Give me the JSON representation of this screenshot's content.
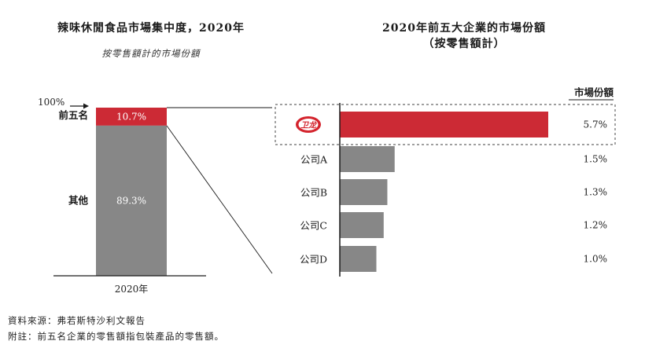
{
  "colors": {
    "red": "#cc2a35",
    "gray": "#878787",
    "dark": "#1a1a1a"
  },
  "left_chart": {
    "title": "辣味休閒食品市場集中度，2020年",
    "subtitle": "按零售額計的市場份額",
    "axis_top_label": "100%",
    "category": "2020年"
  },
  "right_chart": {
    "title_line1": "2020年前五大企業的市場份額",
    "title_line2": "（按零售額計）",
    "column_header": "市場份額",
    "logo_text": "卫龙"
  },
  "chart_data": [
    {
      "type": "bar",
      "stacked": true,
      "categories": [
        "2020年"
      ],
      "series": [
        {
          "name": "前五名",
          "values": [
            10.7
          ],
          "label": "10.7%"
        },
        {
          "name": "其他",
          "values": [
            89.3
          ],
          "label": "89.3%"
        }
      ],
      "ylim": [
        0,
        100
      ]
    },
    {
      "type": "bar",
      "orientation": "horizontal",
      "categories": [
        "卫龙",
        "公司A",
        "公司B",
        "公司C",
        "公司D"
      ],
      "values": [
        5.7,
        1.5,
        1.3,
        1.2,
        1.0
      ],
      "value_labels": [
        "5.7%",
        "1.5%",
        "1.3%",
        "1.2%",
        "1.0%"
      ],
      "highlight_index": 0
    }
  ],
  "footer": {
    "source": "資料來源：弗若斯特沙利文報告",
    "note": "附註：前五名企業的零售額指包裝產品的零售額。"
  }
}
